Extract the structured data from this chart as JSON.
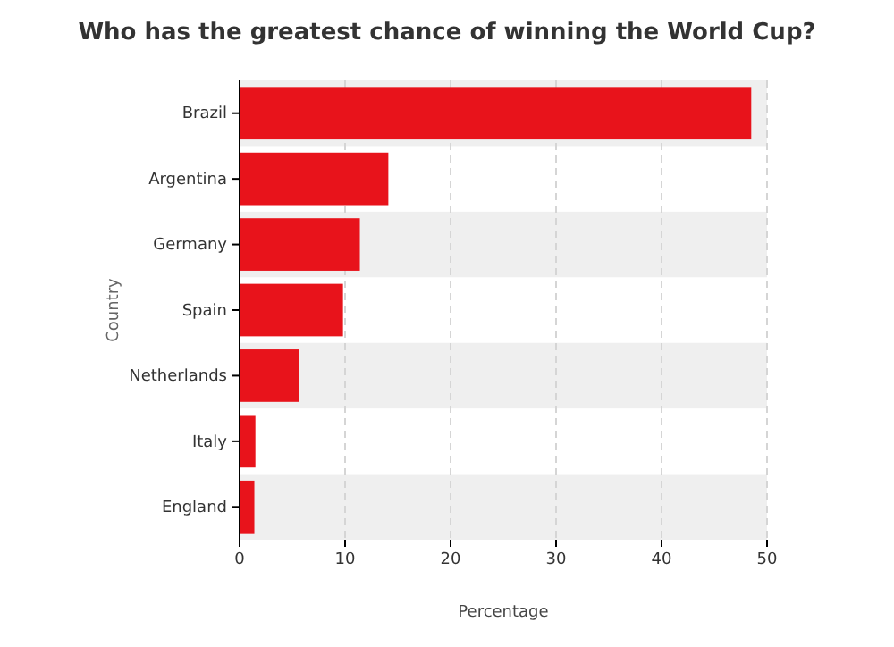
{
  "chart_data": {
    "type": "bar",
    "title": "Who has the greatest chance of winning the World Cup?",
    "orientation": "horizontal",
    "categories": [
      "Brazil",
      "Argentina",
      "Germany",
      "Spain",
      "Netherlands",
      "Italy",
      "England"
    ],
    "values": [
      48.5,
      14.1,
      11.4,
      9.8,
      5.6,
      1.5,
      1.4
    ],
    "color": "#e8131b",
    "xlim": [
      0,
      50
    ],
    "xticks": [
      0,
      10,
      20,
      30,
      40,
      50
    ],
    "xlabel": "Percentage",
    "ylabel": "Country",
    "grid": "x"
  }
}
